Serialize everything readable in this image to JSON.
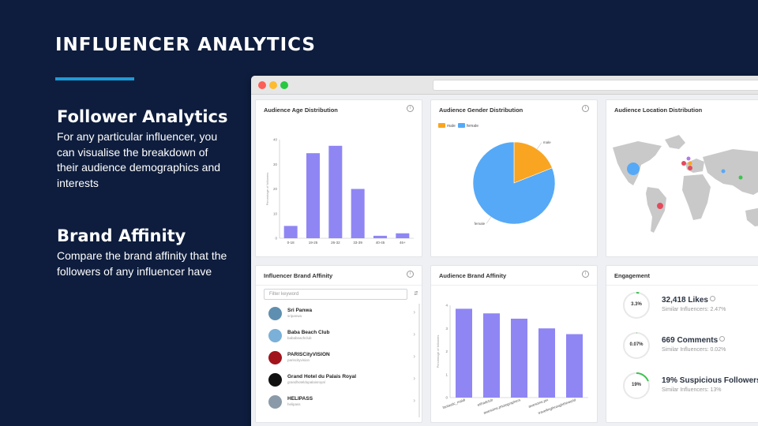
{
  "slide": {
    "title": "INFLUENCER ANALYTICS",
    "sections": [
      {
        "heading": "Follower Analytics",
        "body": "For any particular influencer, you can visualise the breakdown of their audience demographics and interests"
      },
      {
        "heading": "Brand Affinity",
        "body": "Compare the brand affinity that the followers of any influencer have"
      }
    ]
  },
  "panels": {
    "age": {
      "title": "Audience Age Distribution",
      "info_icon": "info-icon"
    },
    "gender": {
      "title": "Audience Gender Distribution",
      "info_icon": "info-icon"
    },
    "location": {
      "title": "Audience Location Distribution"
    },
    "brand": {
      "title": "Influencer Brand Affinity",
      "info_icon": "info-icon"
    },
    "audience_brand": {
      "title": "Audience Brand Affinity",
      "info_icon": "info-icon"
    },
    "engagement": {
      "title": "Engagement"
    }
  },
  "brand_filter": {
    "placeholder": "Filter keyword"
  },
  "brands": [
    {
      "name": "Sri Panwa",
      "handle": "sripanwa",
      "logo_color": "#5f8fb0"
    },
    {
      "name": "Baba Beach Club",
      "handle": "bababeachclub",
      "logo_color": "#7bb0d8"
    },
    {
      "name": "PARISCityVISION",
      "handle": "pariscityvision",
      "logo_color": "#a1141c"
    },
    {
      "name": "Grand Hotel du Palais Royal",
      "handle": "grandhoteldupalaisroyal",
      "logo_color": "#111111"
    },
    {
      "name": "HELIPASS",
      "handle": "helipass",
      "logo_color": "#8a9aa8"
    }
  ],
  "engagement": [
    {
      "pct": "3.3%",
      "value": "32,418 Likes",
      "sub": "Similar Influencers: 2.47%",
      "fraction": 0.033
    },
    {
      "pct": "0.07%",
      "value": "669 Comments",
      "sub": "Similar Influencers: 0.02%",
      "fraction": 0.0007
    },
    {
      "pct": "19%",
      "value": "19% Suspicious Followers",
      "sub": "Similar Influencers: 13%",
      "fraction": 0.19
    }
  ],
  "colors": {
    "bar": "#8f86f4",
    "male": "#f9a521",
    "female": "#56a9f6",
    "ring_track": "#e8e8e8",
    "ring_fill": "#3ec34f"
  },
  "map_dots": [
    {
      "color": "#56a9f6"
    },
    {
      "color": "#e34b5c"
    },
    {
      "color": "#e34b5c"
    },
    {
      "color": "#e34b5c"
    },
    {
      "color": "#f9a521"
    },
    {
      "color": "#b07be8"
    },
    {
      "color": "#56a9f6"
    },
    {
      "color": "#3ec34f"
    }
  ],
  "chart_data": [
    {
      "type": "bar",
      "title": "Audience Age Distribution",
      "categories": [
        "0-18",
        "19-25",
        "26-32",
        "33-39",
        "40-45",
        "46+"
      ],
      "values": [
        5,
        34.5,
        37.5,
        20,
        1,
        2
      ],
      "ylabel": "Percentage of followers",
      "yticks": [
        "0",
        "10",
        "20",
        "30",
        "40"
      ],
      "ylim": [
        0,
        40
      ]
    },
    {
      "type": "pie",
      "title": "Audience Gender Distribution",
      "categories": [
        "male",
        "female"
      ],
      "values": [
        19,
        81
      ],
      "legend": "top-left"
    },
    {
      "type": "bar",
      "title": "Audience Brand Affinity",
      "categories": [
        "fantastic_maldi",
        "etihadclub",
        "awesome.photographers",
        "awesome.pix",
        "travellingthroughtheworld"
      ],
      "values": [
        3.85,
        3.65,
        3.42,
        3.0,
        2.75
      ],
      "ylabel": "Percentage of followers",
      "yticks": [
        "0",
        "1",
        "2",
        "3",
        "4"
      ],
      "ylim": [
        0,
        4
      ]
    }
  ]
}
